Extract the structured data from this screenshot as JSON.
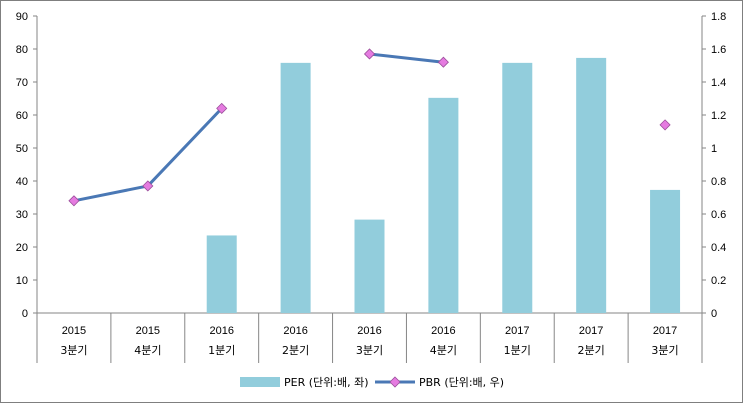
{
  "chart_data": {
    "type": "bar+line",
    "categories": [
      [
        "2015",
        "3분기"
      ],
      [
        "2015",
        "4분기"
      ],
      [
        "2016",
        "1분기"
      ],
      [
        "2016",
        "2분기"
      ],
      [
        "2016",
        "3분기"
      ],
      [
        "2016",
        "4분기"
      ],
      [
        "2017",
        "1분기"
      ],
      [
        "2017",
        "2분기"
      ],
      [
        "2017",
        "3분기"
      ]
    ],
    "series": [
      {
        "name": "PER (단위:배, 좌)",
        "type": "bar",
        "axis": "left",
        "color": "#92cddc",
        "values": [
          null,
          null,
          23.5,
          75.8,
          28.3,
          65.2,
          75.8,
          77.3,
          37.3
        ]
      },
      {
        "name": "PBR (단위:배, 우)",
        "type": "line",
        "axis": "right",
        "color": "#4a78b5",
        "marker_color": "#e57be0",
        "values": [
          0.68,
          0.77,
          1.24,
          null,
          1.57,
          1.52,
          null,
          null,
          1.14
        ]
      }
    ],
    "y_left": {
      "min": 0,
      "max": 90,
      "ticks": [
        "0",
        "10",
        "20",
        "30",
        "40",
        "50",
        "60",
        "70",
        "80",
        "90"
      ]
    },
    "y_right": {
      "min": 0,
      "max": 1.8,
      "ticks": [
        "0",
        "0.2",
        "0.4",
        "0.6",
        "0.8",
        "1",
        "1.2",
        "1.4",
        "1.6",
        "1.8"
      ]
    },
    "grid": false,
    "legend_position": "bottom"
  }
}
